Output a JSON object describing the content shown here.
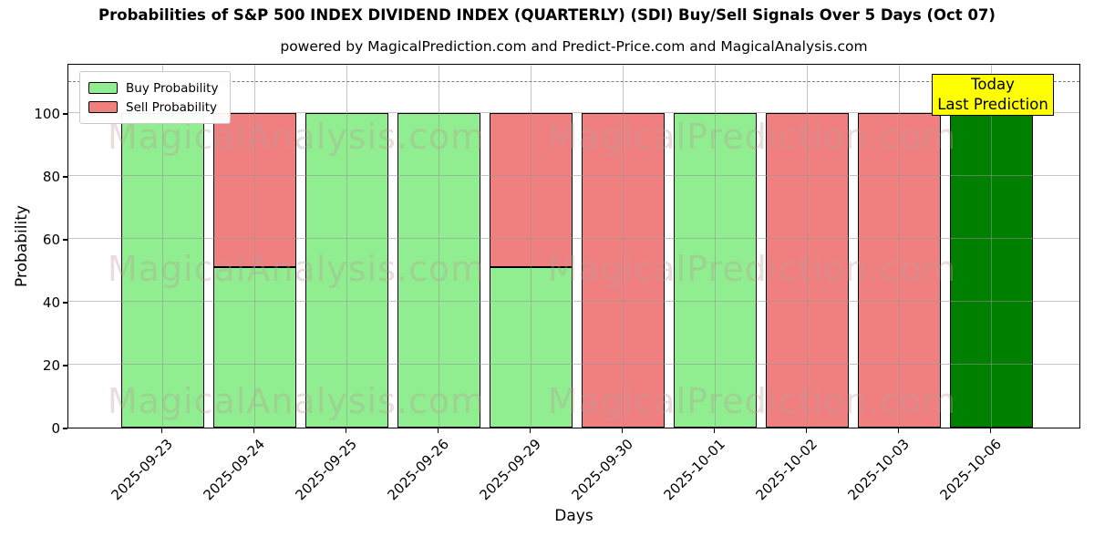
{
  "title": "Probabilities of S&P 500 INDEX DIVIDEND INDEX (QUARTERLY) (SDI) Buy/Sell Signals Over 5 Days (Oct 07)",
  "subtitle": "powered by MagicalPrediction.com and Predict-Price.com and MagicalAnalysis.com",
  "legend": {
    "items": [
      {
        "label": "Buy Probability",
        "color": "#90ee90"
      },
      {
        "label": "Sell Probability",
        "color": "#f08080"
      }
    ]
  },
  "annotation": {
    "line1": "Today",
    "line2": "Last Prediction",
    "bg_color": "#ffff00"
  },
  "watermarks": {
    "left_text": "MagicalAnalysis.com",
    "right_text": "MagicalPrediction.com"
  },
  "axes": {
    "xlabel": "Days",
    "ylabel": "Probability",
    "yticks": [
      0,
      20,
      40,
      60,
      80,
      100
    ],
    "ylim": [
      0,
      116
    ],
    "dashed_line_y": 110
  },
  "colors": {
    "buy": "#90ee90",
    "sell": "#f08080",
    "today_bar": "#008000",
    "annotation_bg": "#ffff00",
    "grid": "#969696",
    "dashed": "#7a7a7a"
  },
  "chart_data": {
    "type": "bar",
    "stacked": true,
    "title": "Probabilities of S&P 500 INDEX DIVIDEND INDEX (QUARTERLY) (SDI) Buy/Sell Signals Over 5 Days (Oct 07)",
    "xlabel": "Days",
    "ylabel": "Probability",
    "ylim": [
      0,
      116
    ],
    "grid": true,
    "legend_position": "upper left",
    "categories": [
      "2025-09-23",
      "2025-09-24",
      "2025-09-25",
      "2025-09-26",
      "2025-09-29",
      "2025-09-30",
      "2025-10-01",
      "2025-10-02",
      "2025-10-03",
      "2025-10-06"
    ],
    "series": [
      {
        "name": "Buy Probability",
        "color": "#90ee90",
        "values": [
          100,
          51,
          100,
          100,
          51,
          0,
          100,
          0,
          0,
          0
        ]
      },
      {
        "name": "Sell Probability",
        "color": "#f08080",
        "values": [
          0,
          49,
          0,
          0,
          49,
          100,
          0,
          100,
          100,
          0
        ]
      },
      {
        "name": "Today / Last Prediction",
        "color": "#008000",
        "values": [
          0,
          0,
          0,
          0,
          0,
          0,
          0,
          0,
          0,
          100
        ]
      }
    ]
  }
}
